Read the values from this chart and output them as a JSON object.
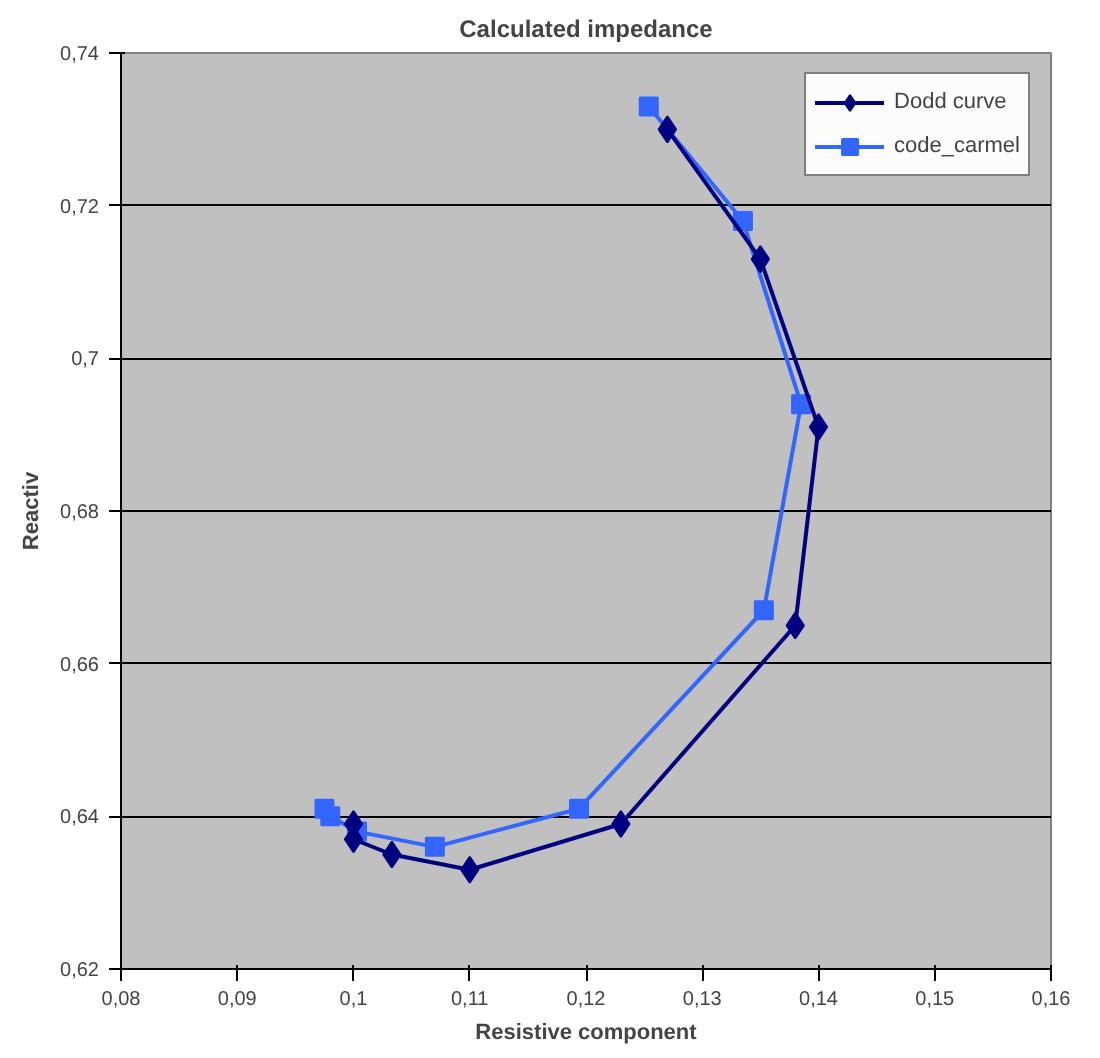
{
  "chart_data": {
    "type": "line",
    "title": "Calculated impedance",
    "xlabel": "Resistive component",
    "ylabel": "Reactiv",
    "series": [
      {
        "name": "Dodd curve",
        "color": "#000080",
        "marker": "diamond",
        "x": [
          0.127,
          0.135,
          0.14,
          0.138,
          0.123,
          0.11,
          0.1033,
          0.1,
          0.1
        ],
        "values": [
          0.73,
          0.713,
          0.691,
          0.665,
          0.639,
          0.633,
          0.635,
          0.637,
          0.639
        ]
      },
      {
        "name": "code_carmel",
        "color": "#3366ff",
        "marker": "square",
        "x": [
          0.1254,
          0.1335,
          0.1385,
          0.1353,
          0.1194,
          0.107,
          0.1003,
          0.098,
          0.0975
        ],
        "values": [
          0.733,
          0.718,
          0.694,
          0.667,
          0.641,
          0.636,
          0.638,
          0.64,
          0.641
        ]
      }
    ],
    "xlim": [
      0.08,
      0.16
    ],
    "ylim": [
      0.62,
      0.74
    ],
    "xticks": [
      {
        "value": 0.08,
        "label": "0,08"
      },
      {
        "value": 0.09,
        "label": "0,09"
      },
      {
        "value": 0.1,
        "label": "0,1"
      },
      {
        "value": 0.11,
        "label": "0,11"
      },
      {
        "value": 0.12,
        "label": "0,12"
      },
      {
        "value": 0.13,
        "label": "0,13"
      },
      {
        "value": 0.14,
        "label": "0,14"
      },
      {
        "value": 0.15,
        "label": "0,15"
      },
      {
        "value": 0.16,
        "label": "0,16"
      }
    ],
    "yticks": [
      {
        "value": 0.62,
        "label": "0,62"
      },
      {
        "value": 0.64,
        "label": "0,64"
      },
      {
        "value": 0.66,
        "label": "0,66"
      },
      {
        "value": 0.68,
        "label": "0,68"
      },
      {
        "value": 0.7,
        "label": "0,7"
      },
      {
        "value": 0.72,
        "label": "0,72"
      },
      {
        "value": 0.74,
        "label": "0,74"
      }
    ],
    "grid": "y",
    "legend": "top right",
    "line_style": "solid"
  }
}
